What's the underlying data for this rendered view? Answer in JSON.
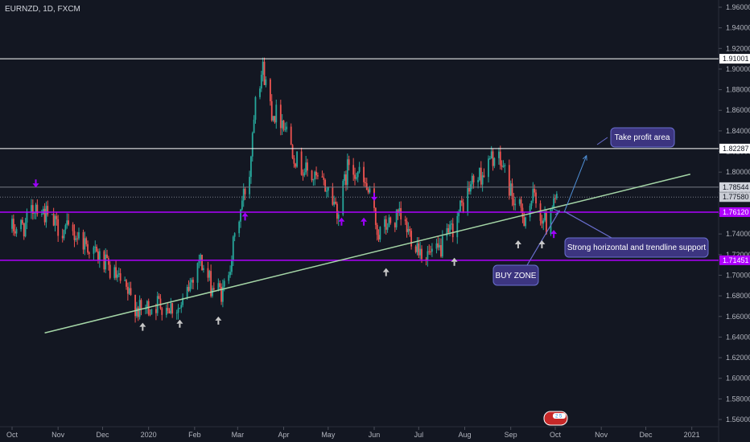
{
  "header": {
    "ticker": "EURNZD, 1D, FXCM"
  },
  "colors": {
    "background": "#131722",
    "up": "#26a69a",
    "down": "#ef5350",
    "support": "#b000ff",
    "resistance": "#ffffff",
    "trendline": "#a5d6a7",
    "annotation_fill": "#3c3580",
    "annotation_stroke": "#6a6fd0",
    "arrow_white": "#c8c8c8",
    "arrow_purple": "#a000ff",
    "projection": "#4f8fd6"
  },
  "chart_data": {
    "type": "candlestick",
    "y_axis": {
      "ticks": [
        "1.56000",
        "1.58000",
        "1.60000",
        "1.62000",
        "1.64000",
        "1.66000",
        "1.68000",
        "1.70000",
        "1.72000",
        "1.74000",
        "1.76000",
        "1.78000",
        "1.80000",
        "1.82000",
        "1.84000",
        "1.86000",
        "1.88000",
        "1.90000",
        "1.92000",
        "1.94000",
        "1.96000"
      ],
      "range": [
        1.553,
        1.967
      ]
    },
    "x_axis": {
      "ticks": [
        "Oct",
        "Nov",
        "Dec",
        "2020",
        "Feb",
        "Mar",
        "Apr",
        "May",
        "Jun",
        "Jul",
        "Aug",
        "Sep",
        "Oct",
        "Nov",
        "Dec",
        "2021"
      ]
    },
    "price_levels": [
      {
        "label": "1.91001",
        "value": 1.91001,
        "kind": "resistance"
      },
      {
        "label": "1.82287",
        "value": 1.82287,
        "kind": "resistance"
      },
      {
        "label": "1.78544",
        "value": 1.78544,
        "kind": "level"
      },
      {
        "label": "1.77580",
        "value": 1.7758,
        "kind": "current"
      },
      {
        "label": "1.76120",
        "value": 1.7612,
        "kind": "support"
      },
      {
        "label": "1.71451",
        "value": 1.71451,
        "kind": "support"
      }
    ],
    "trendline": {
      "from": {
        "date": "2019-10-23",
        "price": 1.644
      },
      "to": {
        "date": "2020-12-31",
        "price": 1.798
      }
    },
    "anchor_prices": [
      {
        "date": "2019-10-01",
        "price": 1.745
      },
      {
        "date": "2019-10-10",
        "price": 1.748
      },
      {
        "date": "2019-10-17",
        "price": 1.77
      },
      {
        "date": "2019-10-30",
        "price": 1.748
      },
      {
        "date": "2019-11-15",
        "price": 1.738
      },
      {
        "date": "2019-11-28",
        "price": 1.718
      },
      {
        "date": "2019-12-13",
        "price": 1.692
      },
      {
        "date": "2019-12-26",
        "price": 1.665
      },
      {
        "date": "2020-01-08",
        "price": 1.673
      },
      {
        "date": "2020-01-23",
        "price": 1.667
      },
      {
        "date": "2020-02-04",
        "price": 1.717
      },
      {
        "date": "2020-02-12",
        "price": 1.69
      },
      {
        "date": "2020-02-20",
        "price": 1.682
      },
      {
        "date": "2020-02-26",
        "price": 1.72
      },
      {
        "date": "2020-03-04",
        "price": 1.771
      },
      {
        "date": "2020-03-09",
        "price": 1.8
      },
      {
        "date": "2020-03-13",
        "price": 1.88
      },
      {
        "date": "2020-03-18",
        "price": 1.9
      },
      {
        "date": "2020-03-24",
        "price": 1.86
      },
      {
        "date": "2020-04-01",
        "price": 1.85
      },
      {
        "date": "2020-04-10",
        "price": 1.81
      },
      {
        "date": "2020-04-20",
        "price": 1.795
      },
      {
        "date": "2020-04-30",
        "price": 1.785
      },
      {
        "date": "2020-05-08",
        "price": 1.762
      },
      {
        "date": "2020-05-15",
        "price": 1.81
      },
      {
        "date": "2020-05-21",
        "price": 1.8
      },
      {
        "date": "2020-05-28",
        "price": 1.78
      },
      {
        "date": "2020-06-04",
        "price": 1.74
      },
      {
        "date": "2020-06-11",
        "price": 1.75
      },
      {
        "date": "2020-06-18",
        "price": 1.755
      },
      {
        "date": "2020-06-26",
        "price": 1.738
      },
      {
        "date": "2020-07-05",
        "price": 1.72
      },
      {
        "date": "2020-07-13",
        "price": 1.72
      },
      {
        "date": "2020-07-21",
        "price": 1.737
      },
      {
        "date": "2020-07-28",
        "price": 1.76
      },
      {
        "date": "2020-08-06",
        "price": 1.79
      },
      {
        "date": "2020-08-14",
        "price": 1.8
      },
      {
        "date": "2020-08-20",
        "price": 1.815
      },
      {
        "date": "2020-08-27",
        "price": 1.805
      },
      {
        "date": "2020-09-04",
        "price": 1.768
      },
      {
        "date": "2020-09-10",
        "price": 1.757
      },
      {
        "date": "2020-09-16",
        "price": 1.775
      },
      {
        "date": "2020-09-21",
        "price": 1.76
      },
      {
        "date": "2020-09-25",
        "price": 1.748
      },
      {
        "date": "2020-09-30",
        "price": 1.779
      },
      {
        "date": "2020-10-02",
        "price": 1.7758
      }
    ],
    "markers": [
      {
        "date": "2019-10-17",
        "price": 1.789,
        "kind": "down-arrow",
        "color": "purple"
      },
      {
        "date": "2020-03-06",
        "price": 1.757,
        "kind": "up-arrow",
        "color": "purple"
      },
      {
        "date": "2020-05-10",
        "price": 1.752,
        "kind": "up-arrow",
        "color": "purple"
      },
      {
        "date": "2020-05-25",
        "price": 1.752,
        "kind": "up-arrow",
        "color": "purple"
      },
      {
        "date": "2020-06-01",
        "price": 1.776,
        "kind": "down-arrow",
        "color": "purple"
      },
      {
        "date": "2020-09-30",
        "price": 1.74,
        "kind": "up-arrow",
        "color": "purple"
      },
      {
        "date": "2019-12-28",
        "price": 1.65,
        "kind": "up-arrow",
        "color": "white"
      },
      {
        "date": "2020-01-22",
        "price": 1.653,
        "kind": "up-arrow",
        "color": "white"
      },
      {
        "date": "2020-02-17",
        "price": 1.656,
        "kind": "up-arrow",
        "color": "white"
      },
      {
        "date": "2020-06-09",
        "price": 1.703,
        "kind": "up-arrow",
        "color": "white"
      },
      {
        "date": "2020-07-25",
        "price": 1.713,
        "kind": "up-arrow",
        "color": "white"
      },
      {
        "date": "2020-09-06",
        "price": 1.73,
        "kind": "up-arrow",
        "color": "white"
      },
      {
        "date": "2020-09-22",
        "price": 1.73,
        "kind": "up-arrow",
        "color": "white"
      }
    ],
    "projection": {
      "support": {
        "date": "2020-10-07",
        "price": 1.761
      },
      "target": {
        "date": "2020-10-22",
        "price": 1.816
      },
      "callout_targets": [
        {
          "date": "2020-10-07",
          "price": 1.762
        },
        {
          "date": "2020-10-04",
          "price": 1.763
        },
        {
          "date": "2020-10-06",
          "price": 1.761
        }
      ]
    }
  },
  "annotations": {
    "take_profit": "Take profit area",
    "support_note": "Strong horizontal and trendline support",
    "buy_zone": "BUY ZONE"
  },
  "badge": "2 5"
}
